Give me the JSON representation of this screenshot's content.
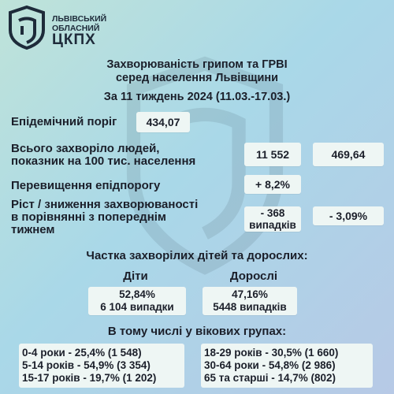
{
  "logo": {
    "line1": "ЛЬВІВСЬКИЙ",
    "line2": "ОБЛАСНИЙ",
    "line3": "ЦКПХ"
  },
  "title": {
    "line1": "Захворюваність грипом та ГРВІ",
    "line2": "серед населення Львівщини",
    "line3": "За 11 тиждень 2024 (11.03.-17.03.)"
  },
  "threshold": {
    "label": "Епідемічний поріг",
    "value": "434,07"
  },
  "total": {
    "label_line1": "Всього захворіло людей,",
    "label_line2": "показник на 100 тис. населення",
    "count": "11 552",
    "rate": "469,64"
  },
  "exceed": {
    "label": "Перевищення епідпорогу",
    "value": "+ 8,2%"
  },
  "change": {
    "label_line1": "Ріст / зниження захворюваності",
    "label_line2": "в порівнянні з попереднім",
    "label_line3": "тижнем",
    "cases_line1": "- 368",
    "cases_line2": "випадків",
    "percent": "- 3,09%"
  },
  "share": {
    "heading": "Частка захворілих дітей та дорослих:",
    "children": {
      "label": "Діти",
      "percent": "52,84%",
      "cases": "6 104 випадки"
    },
    "adults": {
      "label": "Дорослі",
      "percent": "47,16%",
      "cases": "5448 випадків"
    }
  },
  "age_groups": {
    "heading": "В тому числі у вікових групах:",
    "left": [
      "0-4 роки - 25,4% (1 548)",
      "5-14 років - 54,9% (3 354)",
      "15-17 років - 19,7% (1 202)"
    ],
    "right": [
      "18-29 років - 30,5% (1 660)",
      "30-64 роки - 54,8% (2 986)",
      "65 та старші - 14,7% (802)"
    ]
  },
  "colors": {
    "box": "#eef6f4",
    "text": "#1b1f2a"
  }
}
